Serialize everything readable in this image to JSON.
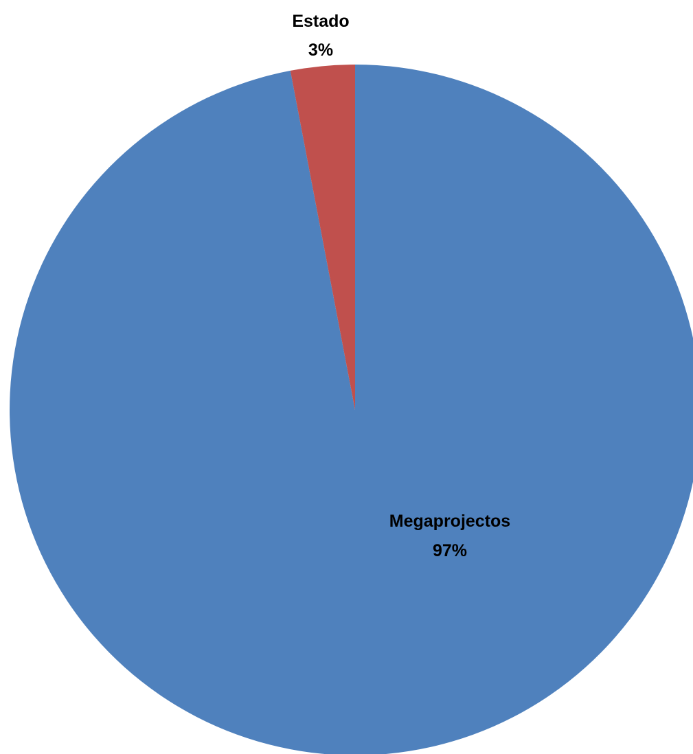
{
  "chart_data": {
    "type": "pie",
    "title": "",
    "slices": [
      {
        "label": "Megaprojectos",
        "value": 97,
        "value_label": "97%",
        "color": "#4F81BD"
      },
      {
        "label": "Estado",
        "value": 3,
        "value_label": "3%",
        "color": "#C0504D"
      }
    ],
    "legend": "none",
    "data_labels": "category and percentage"
  }
}
